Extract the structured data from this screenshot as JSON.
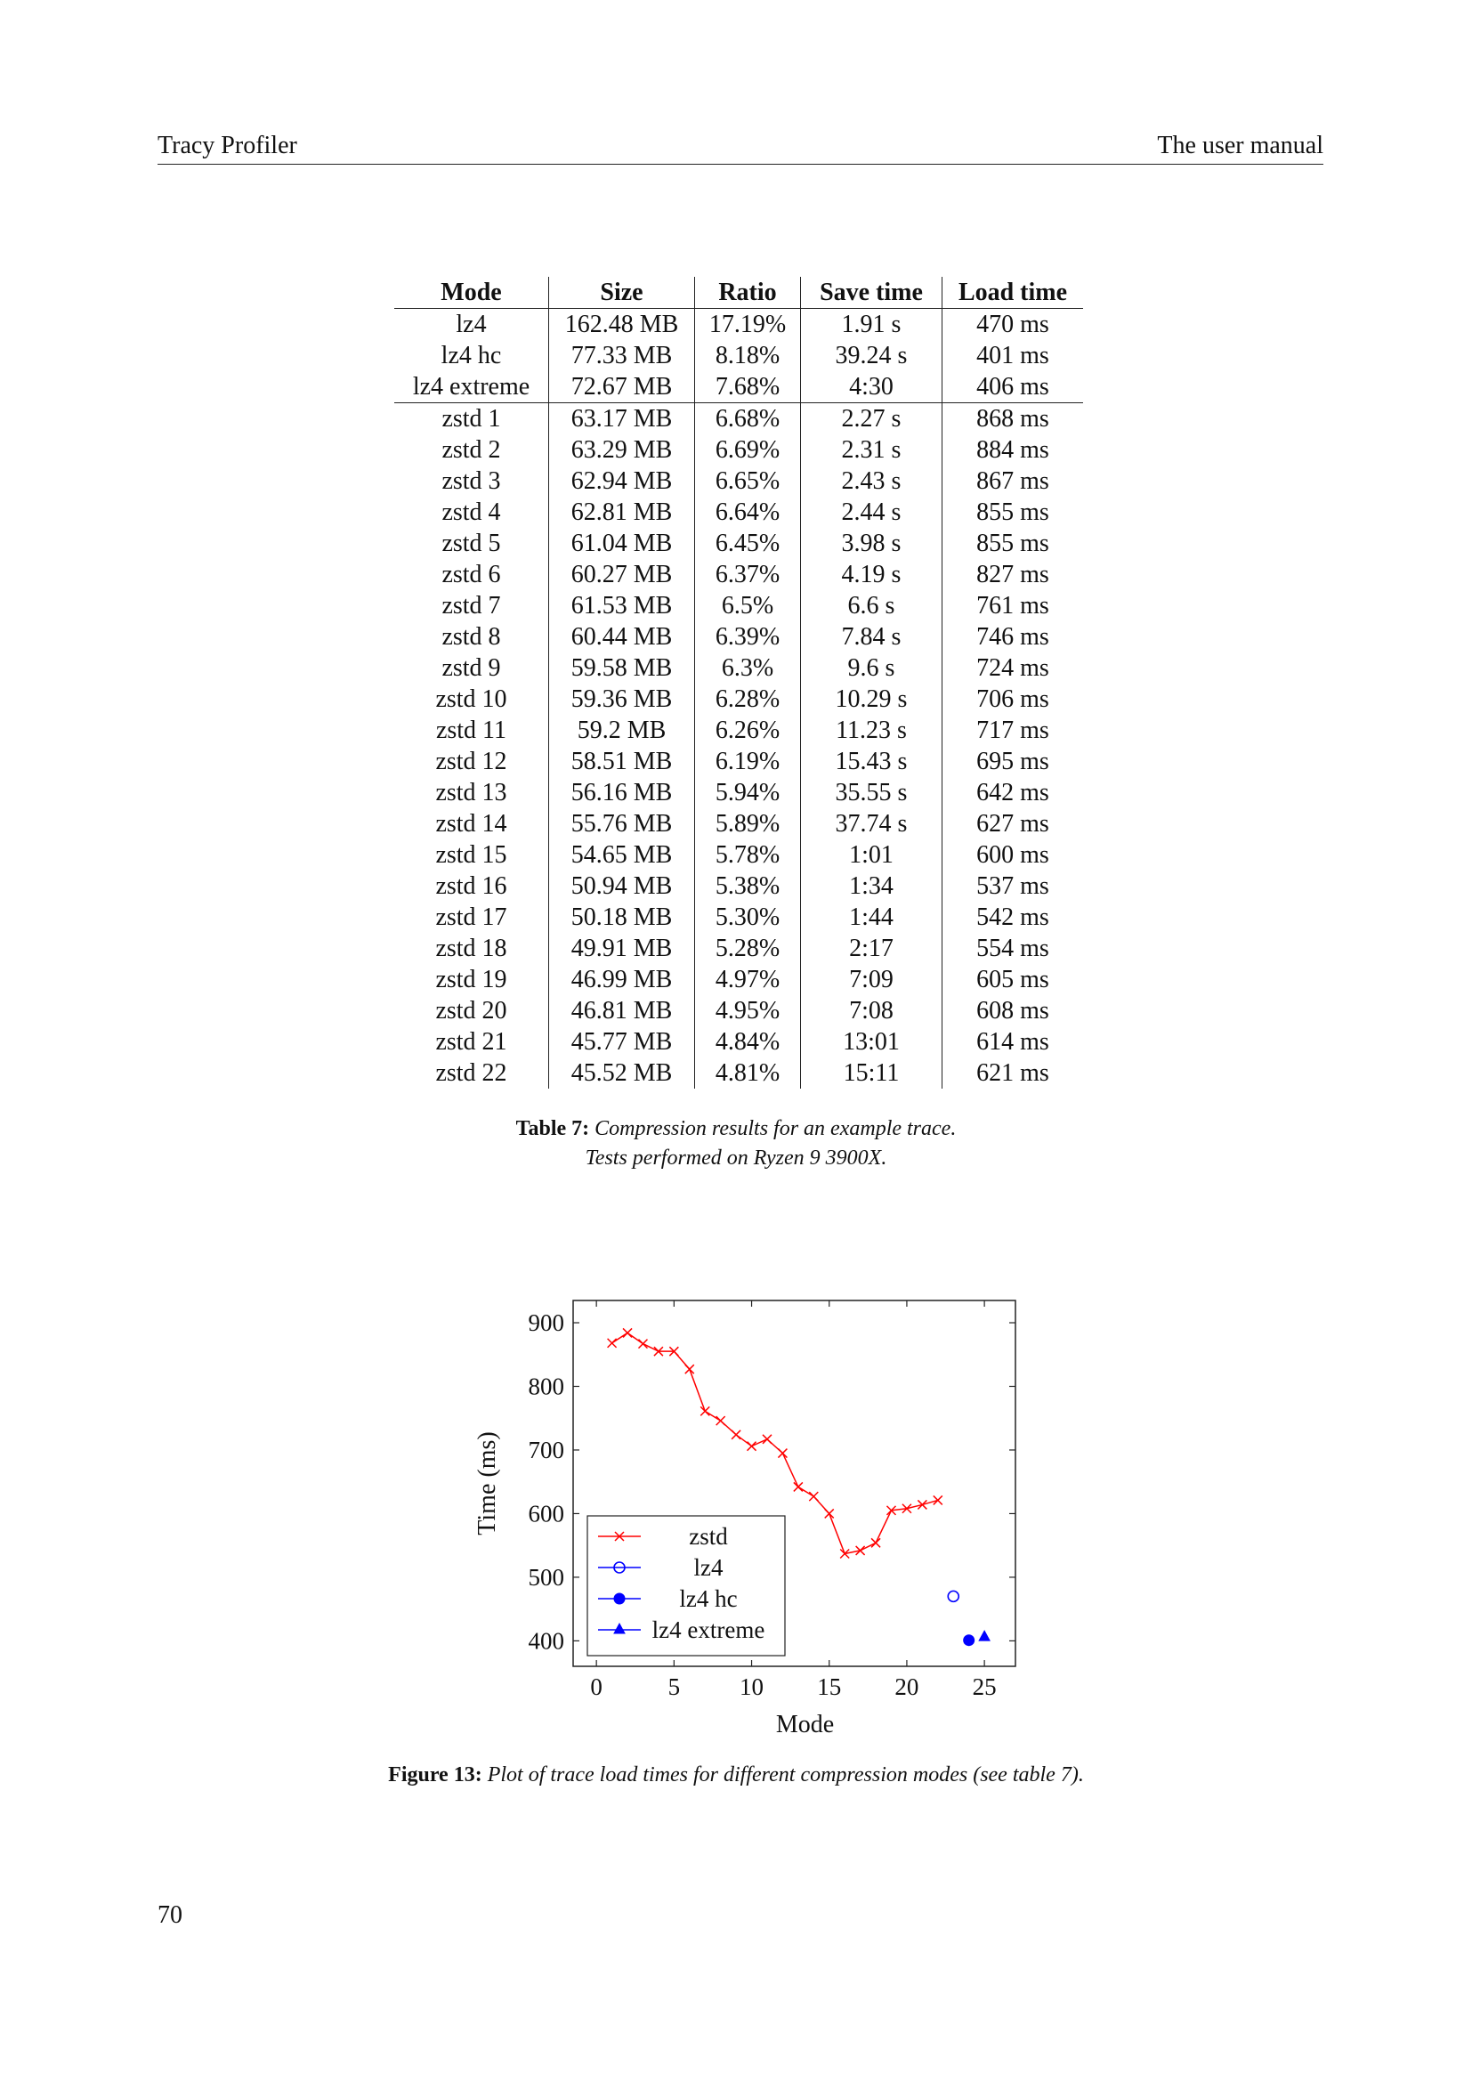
{
  "header": {
    "left": "Tracy Profiler",
    "right": "The user manual"
  },
  "table": {
    "columns": [
      "Mode",
      "Size",
      "Ratio",
      "Save time",
      "Load time"
    ],
    "rows": [
      [
        "lz4",
        "162.48 MB",
        "17.19%",
        "1.91 s",
        "470 ms"
      ],
      [
        "lz4 hc",
        "77.33 MB",
        "8.18%",
        "39.24 s",
        "401 ms"
      ],
      [
        "lz4 extreme",
        "72.67 MB",
        "7.68%",
        "4:30",
        "406 ms"
      ],
      [
        "zstd 1",
        "63.17 MB",
        "6.68%",
        "2.27 s",
        "868 ms"
      ],
      [
        "zstd 2",
        "63.29 MB",
        "6.69%",
        "2.31 s",
        "884 ms"
      ],
      [
        "zstd 3",
        "62.94 MB",
        "6.65%",
        "2.43 s",
        "867 ms"
      ],
      [
        "zstd 4",
        "62.81 MB",
        "6.64%",
        "2.44 s",
        "855 ms"
      ],
      [
        "zstd 5",
        "61.04 MB",
        "6.45%",
        "3.98 s",
        "855 ms"
      ],
      [
        "zstd 6",
        "60.27 MB",
        "6.37%",
        "4.19 s",
        "827 ms"
      ],
      [
        "zstd 7",
        "61.53 MB",
        "6.5%",
        "6.6 s",
        "761 ms"
      ],
      [
        "zstd 8",
        "60.44 MB",
        "6.39%",
        "7.84 s",
        "746 ms"
      ],
      [
        "zstd 9",
        "59.58 MB",
        "6.3%",
        "9.6 s",
        "724 ms"
      ],
      [
        "zstd 10",
        "59.36 MB",
        "6.28%",
        "10.29 s",
        "706 ms"
      ],
      [
        "zstd 11",
        "59.2 MB",
        "6.26%",
        "11.23 s",
        "717 ms"
      ],
      [
        "zstd 12",
        "58.51 MB",
        "6.19%",
        "15.43 s",
        "695 ms"
      ],
      [
        "zstd 13",
        "56.16 MB",
        "5.94%",
        "35.55 s",
        "642 ms"
      ],
      [
        "zstd 14",
        "55.76 MB",
        "5.89%",
        "37.74 s",
        "627 ms"
      ],
      [
        "zstd 15",
        "54.65 MB",
        "5.78%",
        "1:01",
        "600 ms"
      ],
      [
        "zstd 16",
        "50.94 MB",
        "5.38%",
        "1:34",
        "537 ms"
      ],
      [
        "zstd 17",
        "50.18 MB",
        "5.30%",
        "1:44",
        "542 ms"
      ],
      [
        "zstd 18",
        "49.91 MB",
        "5.28%",
        "2:17",
        "554 ms"
      ],
      [
        "zstd 19",
        "46.99 MB",
        "4.97%",
        "7:09",
        "605 ms"
      ],
      [
        "zstd 20",
        "46.81 MB",
        "4.95%",
        "7:08",
        "608 ms"
      ],
      [
        "zstd 21",
        "45.77 MB",
        "4.84%",
        "13:01",
        "614 ms"
      ],
      [
        "zstd 22",
        "45.52 MB",
        "4.81%",
        "15:11",
        "621 ms"
      ]
    ]
  },
  "table_caption": {
    "label": "Table 7:",
    "line1": "Compression results for an example trace.",
    "line2": "Tests performed on Ryzen 9 3900X."
  },
  "figure_caption": {
    "label": "Figure 13:",
    "text": "Plot of trace load times for different compression modes (see table 7)."
  },
  "page_number": "70",
  "chart_data": {
    "type": "scatter",
    "xlabel": "Mode",
    "ylabel": "Time (ms)",
    "xlim": [
      -1.5,
      27
    ],
    "ylim": [
      360,
      935
    ],
    "xticks": [
      "0",
      "5",
      "10",
      "15",
      "20",
      "25"
    ],
    "yticks": [
      "400",
      "500",
      "600",
      "700",
      "800",
      "900"
    ],
    "grid": false,
    "legend_position": "bottom-left",
    "series": [
      {
        "name": "zstd",
        "color": "#ff0000",
        "marker": "x",
        "line": true,
        "x": [
          1,
          2,
          3,
          4,
          5,
          6,
          7,
          8,
          9,
          10,
          11,
          12,
          13,
          14,
          15,
          16,
          17,
          18,
          19,
          20,
          21,
          22
        ],
        "y": [
          868,
          884,
          867,
          855,
          855,
          827,
          761,
          746,
          724,
          706,
          717,
          695,
          642,
          627,
          600,
          537,
          542,
          554,
          605,
          608,
          614,
          621
        ]
      },
      {
        "name": "lz4",
        "color": "#0000ff",
        "marker": "circle-open",
        "line": false,
        "x": [
          23
        ],
        "y": [
          470
        ]
      },
      {
        "name": "lz4 hc",
        "color": "#0000ff",
        "marker": "circle-filled",
        "line": false,
        "x": [
          24
        ],
        "y": [
          401
        ]
      },
      {
        "name": "lz4 extreme",
        "color": "#0000ff",
        "marker": "triangle",
        "line": false,
        "x": [
          25
        ],
        "y": [
          406
        ]
      }
    ]
  }
}
